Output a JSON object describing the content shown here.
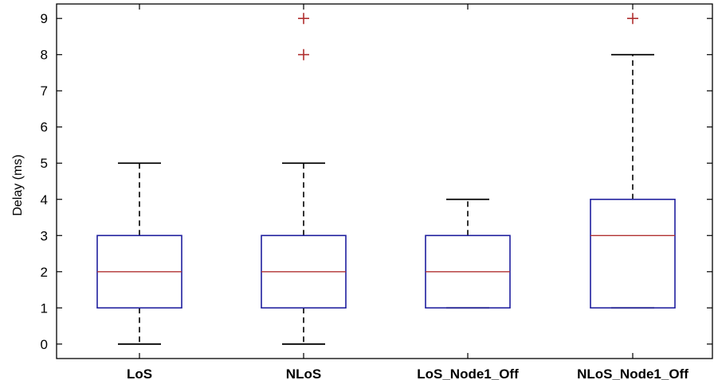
{
  "chart_data": {
    "type": "box",
    "title": "",
    "xlabel": "",
    "ylabel": "Delay  (ms)",
    "ylim": [
      -0.4,
      9.4
    ],
    "yticks": [
      0,
      1,
      2,
      3,
      4,
      5,
      6,
      7,
      8,
      9
    ],
    "categories": [
      "LoS",
      "NLoS",
      "LoS_Node1_Off",
      "NLoS_Node1_Off"
    ],
    "boxes": [
      {
        "q1": 1,
        "median": 2,
        "q3": 3,
        "whisker_low": 0,
        "whisker_high": 5,
        "outliers": []
      },
      {
        "q1": 1,
        "median": 2,
        "q3": 3,
        "whisker_low": 0,
        "whisker_high": 5,
        "outliers": [
          8,
          9
        ]
      },
      {
        "q1": 1,
        "median": 2,
        "q3": 3,
        "whisker_low": 1,
        "whisker_high": 4,
        "outliers": []
      },
      {
        "q1": 1,
        "median": 3,
        "q3": 4,
        "whisker_low": 1,
        "whisker_high": 8,
        "outliers": [
          9
        ]
      }
    ],
    "colors": {
      "box": "#1f1f9e",
      "median": "#b03030",
      "whisker": "#000000",
      "outlier": "#b03030"
    },
    "grid": false,
    "legend": "none"
  }
}
